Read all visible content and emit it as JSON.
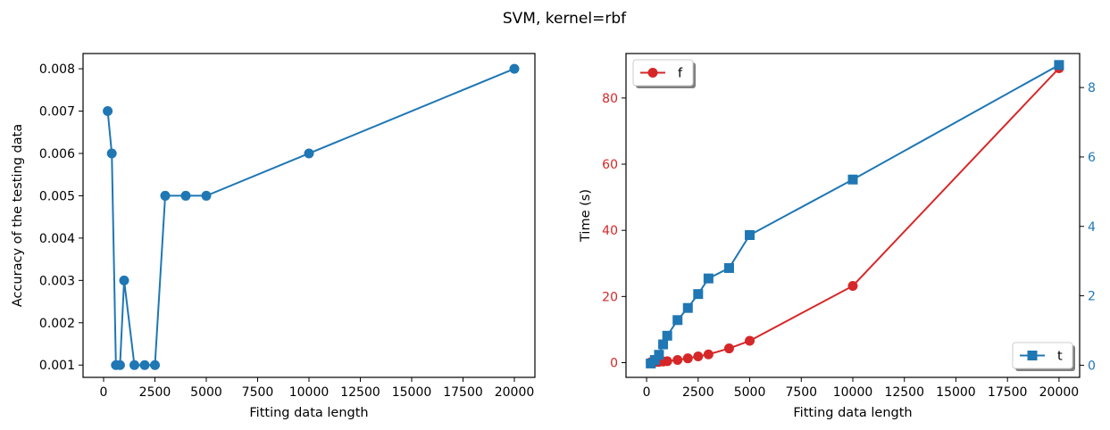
{
  "figure_title": "SVM, kernel=rbf",
  "colors": {
    "blue": "#1f77b4",
    "red": "#d62728"
  },
  "chart_data": [
    {
      "type": "line",
      "xlabel": "Fitting data length",
      "ylabel": "Accuracy of the testing data",
      "xlim": [
        -1000,
        21000
      ],
      "ylim": [
        0.00071,
        0.00836
      ],
      "xticks": [
        0,
        2500,
        5000,
        7500,
        10000,
        12500,
        15000,
        17500,
        20000
      ],
      "yticks": [
        0.001,
        0.002,
        0.003,
        0.004,
        0.005,
        0.006,
        0.007,
        0.008
      ],
      "ytick_labels": [
        "0.001",
        "0.002",
        "0.003",
        "0.004",
        "0.005",
        "0.006",
        "0.007",
        "0.008"
      ],
      "marker": "circle",
      "color": "#1f77b4",
      "series": [
        {
          "x": [
            200,
            400,
            600,
            800,
            1000,
            1500,
            2000,
            2500,
            3000,
            4000,
            5000,
            10000,
            20000
          ],
          "y": [
            0.007,
            0.006,
            0.001,
            0.001,
            0.003,
            0.001,
            0.001,
            0.001,
            0.005,
            0.005,
            0.005,
            0.006,
            0.008
          ]
        }
      ]
    },
    {
      "type": "line",
      "xlabel": "Fitting data length",
      "ylabel": "Time (s)",
      "xlim": [
        -1000,
        21000
      ],
      "ylim_left": [
        -4.45,
        93.45
      ],
      "ylim_right": [
        -0.35,
        8.98
      ],
      "xticks": [
        0,
        2500,
        5000,
        7500,
        10000,
        12500,
        15000,
        17500,
        20000
      ],
      "yticks_left": [
        0,
        20,
        40,
        60,
        80
      ],
      "yticks_right": [
        0,
        2,
        4,
        6,
        8
      ],
      "series": [
        {
          "name": "f",
          "axis": "left",
          "marker": "circle",
          "color": "#d62728",
          "x": [
            200,
            400,
            600,
            800,
            1000,
            1500,
            2000,
            2500,
            3000,
            4000,
            5000,
            10000,
            20000
          ],
          "y": [
            0.1,
            0.15,
            0.25,
            0.35,
            0.45,
            0.8,
            1.3,
            1.9,
            2.5,
            4.3,
            6.6,
            23.2,
            89.0
          ]
        },
        {
          "name": "t",
          "axis": "right",
          "marker": "square",
          "color": "#1f77b4",
          "x": [
            200,
            400,
            600,
            800,
            1000,
            1500,
            2000,
            2500,
            3000,
            4000,
            5000,
            10000,
            20000
          ],
          "y": [
            0.05,
            0.15,
            0.3,
            0.6,
            0.85,
            1.3,
            1.65,
            2.05,
            2.5,
            2.8,
            3.75,
            5.35,
            8.65
          ]
        }
      ]
    }
  ]
}
